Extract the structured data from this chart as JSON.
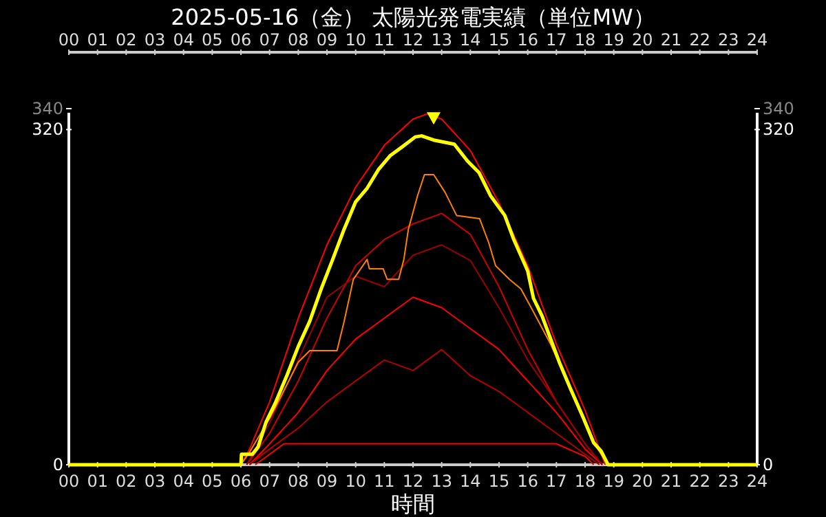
{
  "chart_data": {
    "type": "line",
    "title": "2025-05-16（金） 太陽光発電実績（単位MW）",
    "xlabel": "時間",
    "xlim": [
      0,
      24
    ],
    "x2lim": [
      0,
      24
    ],
    "xticks": [
      {
        "value": 0,
        "label": "00"
      },
      {
        "value": 1,
        "label": "01"
      },
      {
        "value": 2,
        "label": "02"
      },
      {
        "value": 3,
        "label": "03"
      },
      {
        "value": 4,
        "label": "04"
      },
      {
        "value": 5,
        "label": "05"
      },
      {
        "value": 6,
        "label": "06"
      },
      {
        "value": 7,
        "label": "07"
      },
      {
        "value": 8,
        "label": "08"
      },
      {
        "value": 9,
        "label": "09"
      },
      {
        "value": 10,
        "label": "10"
      },
      {
        "value": 11,
        "label": "11"
      },
      {
        "value": 12,
        "label": "12"
      },
      {
        "value": 13,
        "label": "13"
      },
      {
        "value": 14,
        "label": "14"
      },
      {
        "value": 15,
        "label": "15"
      },
      {
        "value": 16,
        "label": "16"
      },
      {
        "value": 17,
        "label": "17"
      },
      {
        "value": 18,
        "label": "18"
      },
      {
        "value": 19,
        "label": "19"
      },
      {
        "value": 20,
        "label": "20"
      },
      {
        "value": 21,
        "label": "21"
      },
      {
        "value": 22,
        "label": "22"
      },
      {
        "value": 23,
        "label": "23"
      },
      {
        "value": 24,
        "label": "24"
      }
    ],
    "x2ticks": [
      {
        "value": 0,
        "label": "00"
      },
      {
        "value": 1,
        "label": "01"
      },
      {
        "value": 2,
        "label": "02"
      },
      {
        "value": 3,
        "label": "03"
      },
      {
        "value": 4,
        "label": "04"
      },
      {
        "value": 5,
        "label": "05"
      },
      {
        "value": 6,
        "label": "06"
      },
      {
        "value": 7,
        "label": "07"
      },
      {
        "value": 8,
        "label": "08"
      },
      {
        "value": 9,
        "label": "09"
      },
      {
        "value": 10,
        "label": "10"
      },
      {
        "value": 11,
        "label": "11"
      },
      {
        "value": 12,
        "label": "12"
      },
      {
        "value": 13,
        "label": "13"
      },
      {
        "value": 14,
        "label": "14"
      },
      {
        "value": 15,
        "label": "15"
      },
      {
        "value": 16,
        "label": "16"
      },
      {
        "value": 17,
        "label": "17"
      },
      {
        "value": 18,
        "label": "18"
      },
      {
        "value": 19,
        "label": "19"
      },
      {
        "value": 20,
        "label": "20"
      },
      {
        "value": 21,
        "label": "21"
      },
      {
        "value": 22,
        "label": "22"
      },
      {
        "value": 23,
        "label": "23"
      },
      {
        "value": 24,
        "label": "24"
      }
    ],
    "ylim": [
      0,
      340
    ],
    "yticks": [
      0,
      320,
      340
    ],
    "y2lim": [
      0,
      340
    ],
    "y2ticks": [
      0,
      320,
      340
    ],
    "grid": false,
    "line_style": "solid",
    "series": [
      {
        "color": "#ff0000",
        "x": [
          6,
          6.3,
          7,
          8,
          9,
          10,
          11,
          12,
          12.5,
          13,
          14,
          15,
          16,
          17,
          18,
          18.7
        ],
        "values": [
          0,
          15,
          60,
          140,
          210,
          265,
          305,
          330,
          335,
          330,
          300,
          250,
          190,
          115,
          52,
          0
        ]
      },
      {
        "color": "#cc0000",
        "x": [
          6.2,
          7,
          8,
          9,
          10,
          11,
          12,
          13,
          14,
          15,
          16,
          17,
          18,
          18.6
        ],
        "values": [
          0,
          30,
          80,
          140,
          190,
          215,
          230,
          240,
          220,
          170,
          110,
          60,
          20,
          0
        ]
      },
      {
        "color": "#ff0000",
        "x": [
          6.3,
          7,
          8,
          9,
          10,
          11,
          12,
          13,
          14,
          15,
          16,
          17,
          18,
          18.6
        ],
        "values": [
          0,
          20,
          50,
          90,
          120,
          140,
          160,
          150,
          130,
          110,
          80,
          50,
          15,
          0
        ]
      },
      {
        "color": "#b00000",
        "x": [
          6.3,
          7,
          8,
          9,
          10,
          11,
          12,
          13,
          14,
          15,
          16,
          17,
          18,
          18.5
        ],
        "values": [
          0,
          15,
          35,
          60,
          80,
          100,
          90,
          110,
          85,
          70,
          50,
          30,
          10,
          0
        ]
      },
      {
        "color": "#ff0000",
        "x": [
          6.5,
          7.5,
          9,
          12,
          15,
          17,
          18,
          18.3
        ],
        "values": [
          0,
          20,
          20,
          20,
          20,
          20,
          8,
          0
        ]
      },
      {
        "color": "#990000",
        "x": [
          6.2,
          7,
          8,
          9,
          10,
          11,
          12,
          13,
          14,
          15,
          16,
          17,
          18,
          18.6
        ],
        "values": [
          0,
          40,
          100,
          160,
          180,
          170,
          200,
          210,
          195,
          150,
          100,
          60,
          20,
          0
        ]
      },
      {
        "color": "#ff8000",
        "x": [
          0,
          6,
          6.3,
          7.04,
          8,
          8.4,
          9.35,
          9.6,
          9.92,
          10.4,
          10.48,
          10.96,
          11.1,
          11.5,
          11.68,
          11.84,
          12.16,
          12.4,
          12.72,
          13.12,
          13.52,
          14.32,
          14.64,
          14.88,
          15.36,
          15.76,
          16.16,
          16.8,
          17.5,
          18.3,
          18.8,
          24
        ],
        "values": [
          0,
          0,
          12,
          46,
          98,
          109,
          109,
          137,
          177,
          196,
          187,
          187,
          177,
          177,
          196,
          225,
          257,
          277,
          277,
          260,
          238,
          235,
          212,
          190,
          177,
          168,
          148,
          115,
          72,
          21,
          0,
          0
        ]
      },
      {
        "color": "#ffff00",
        "x": [
          0,
          6,
          6.02,
          6.4,
          6.6,
          6.88,
          7.2,
          7.6,
          8,
          8.4,
          8.8,
          9.2,
          9.6,
          10,
          10.4,
          10.8,
          11.2,
          11.6,
          12.08,
          12.3,
          12.72,
          13.44,
          13.9,
          14.3,
          14.7,
          15.2,
          15.5,
          16,
          16.2,
          16.5,
          16.8,
          17.1,
          17.5,
          17.92,
          18.3,
          18.56,
          18.8,
          24
        ],
        "values": [
          0,
          0,
          10,
          10,
          17,
          41,
          59,
          85,
          113,
          137,
          168,
          196,
          225,
          251,
          264,
          282,
          295,
          303,
          313,
          314,
          310,
          306,
          290,
          279,
          257,
          238,
          216,
          185,
          159,
          142,
          120,
          98,
          72,
          46,
          21,
          13,
          0,
          0
        ]
      },
      {
        "type": "scatter",
        "marker": "triangle",
        "color": "#ffff00",
        "x": [
          12.72
        ],
        "values": [
          330
        ]
      }
    ]
  }
}
